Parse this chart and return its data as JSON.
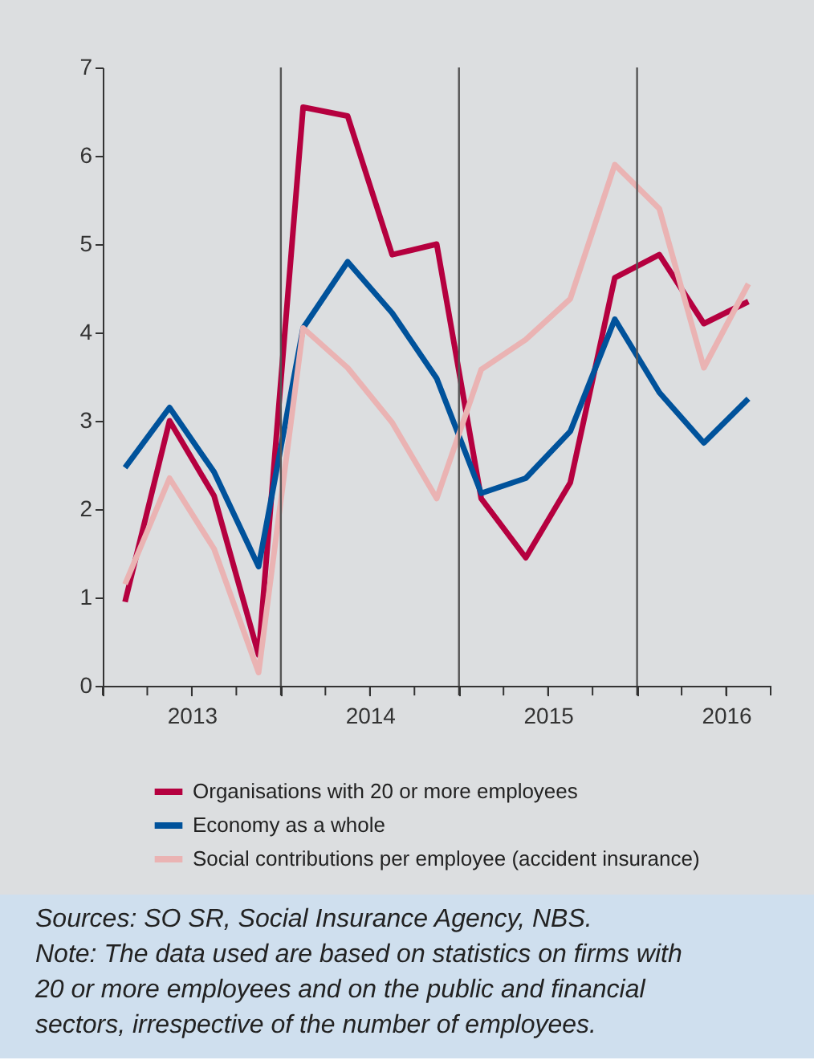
{
  "chart_data": {
    "type": "line",
    "x": [
      2013.125,
      2013.375,
      2013.625,
      2013.875,
      2014.125,
      2014.375,
      2014.625,
      2014.875,
      2015.125,
      2015.375,
      2015.625,
      2015.875,
      2016.125,
      2016.375,
      2016.625
    ],
    "series": [
      {
        "name": "Organisations with 20 or more employees",
        "color": "#b5003f",
        "values": [
          0.95,
          3.0,
          2.15,
          0.35,
          6.55,
          6.45,
          4.88,
          5.0,
          2.12,
          1.45,
          2.3,
          4.62,
          4.88,
          4.1,
          4.35
        ]
      },
      {
        "name": "Economy as a whole",
        "color": "#00529b",
        "values": [
          2.47,
          3.15,
          2.42,
          1.35,
          4.05,
          4.8,
          4.22,
          3.48,
          2.18,
          2.35,
          2.88,
          4.15,
          3.32,
          2.75,
          3.25
        ]
      },
      {
        "name": "Social contributions per employee (accident insurance)",
        "color": "#eab3b3",
        "values": [
          1.15,
          2.35,
          1.55,
          0.15,
          4.05,
          3.6,
          2.98,
          2.12,
          3.58,
          3.92,
          4.38,
          5.9,
          5.4,
          3.6,
          4.55
        ]
      }
    ],
    "xlim": [
      2013.0,
      2016.75
    ],
    "xticks": [
      {
        "value": 2013.0,
        "label": null
      },
      {
        "value": 2013.25,
        "label": null
      },
      {
        "value": 2013.5,
        "label": "2013"
      },
      {
        "value": 2013.75,
        "label": null
      },
      {
        "value": 2014.0,
        "label": null
      },
      {
        "value": 2014.25,
        "label": null
      },
      {
        "value": 2014.5,
        "label": "2014"
      },
      {
        "value": 2014.75,
        "label": null
      },
      {
        "value": 2015.0,
        "label": null
      },
      {
        "value": 2015.25,
        "label": null
      },
      {
        "value": 2015.5,
        "label": "2015"
      },
      {
        "value": 2015.75,
        "label": null
      },
      {
        "value": 2016.0,
        "label": null
      },
      {
        "value": 2016.25,
        "label": null
      },
      {
        "value": 2016.5,
        "label": "2016"
      },
      {
        "value": 2016.75,
        "label": null
      }
    ],
    "ylim": [
      0,
      7
    ],
    "yticks": [
      0,
      1,
      2,
      3,
      4,
      5,
      6,
      7
    ],
    "ref_lines": [
      {
        "axis": "x",
        "value": 2014.0,
        "color": "#555555"
      },
      {
        "axis": "x",
        "value": 2015.0,
        "color": "#555555"
      },
      {
        "axis": "x",
        "value": 2016.0,
        "color": "#555555"
      }
    ],
    "legend": "bottom",
    "line_style": "solid",
    "marker": "none",
    "annotations": [
      "Sources: SO SR, Social Insurance Agency, NBS.",
      "Note: The data used are based on statistics on firms with 20 or more employees and on the public and financial sectors, irrespective of the number of employees."
    ]
  }
}
